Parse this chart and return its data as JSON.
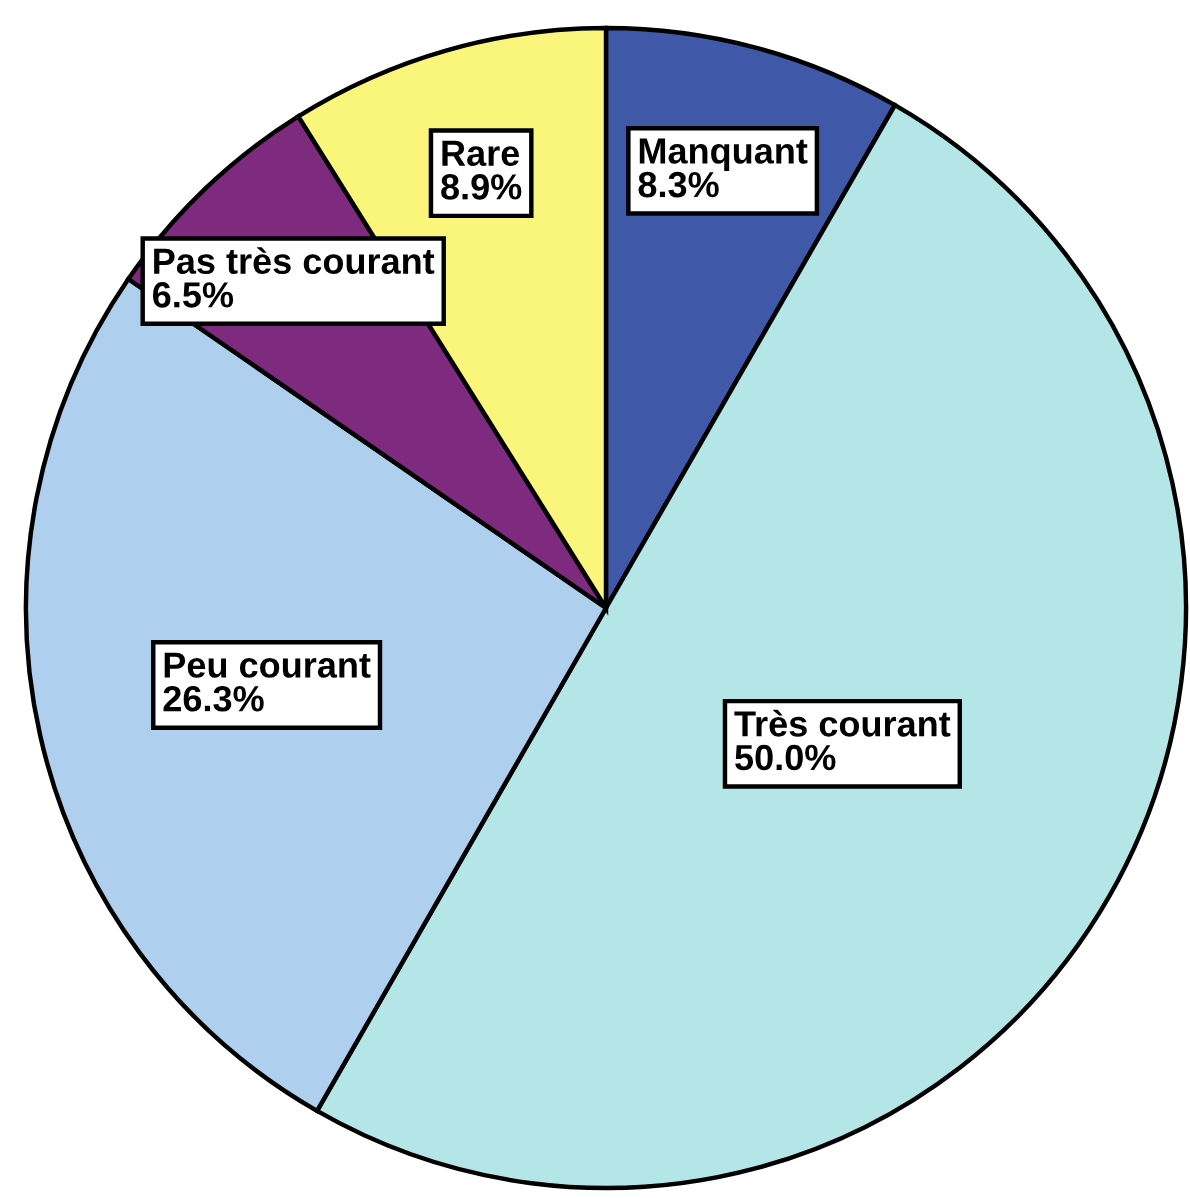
{
  "chart_data": {
    "type": "pie",
    "categories": [
      "Manquant",
      "Très courant",
      "Peu courant",
      "Pas très courant",
      "Rare"
    ],
    "values": [
      8.3,
      50.0,
      26.3,
      6.5,
      8.9
    ],
    "colors": [
      "#3f58a8",
      "#b4e6e8",
      "#aecfee",
      "#7e2a7e",
      "#faf67b"
    ],
    "value_labels": [
      "8.3%",
      "50.0%",
      "26.3%",
      "6.5%",
      "8.9%"
    ]
  }
}
